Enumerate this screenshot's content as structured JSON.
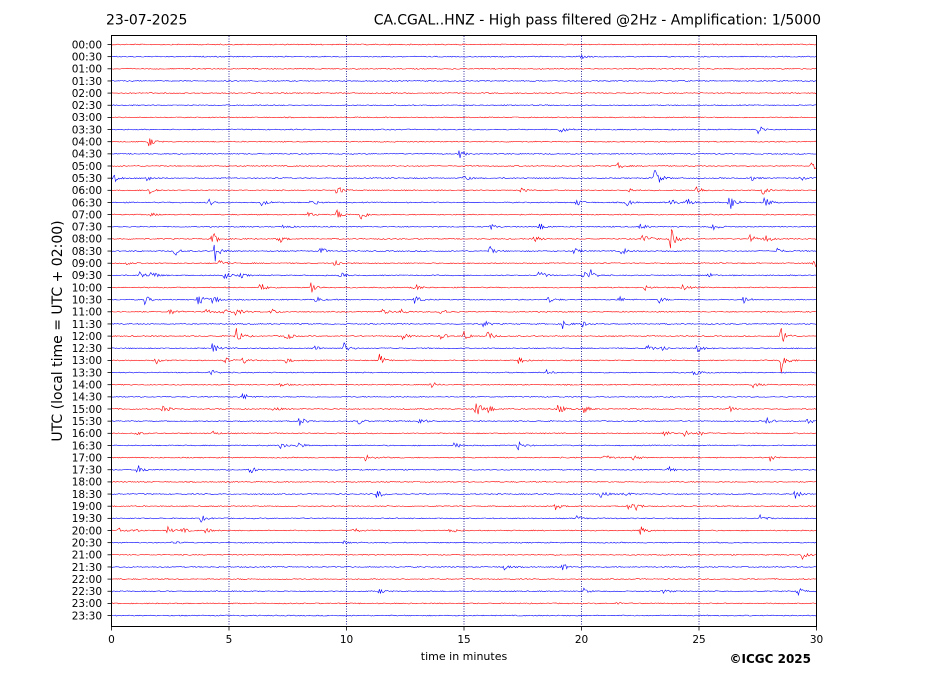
{
  "header": {
    "date": "23-07-2025",
    "station_title": "CA.CGAL..HNZ - High pass filtered @2Hz - Amplification: 1/5000"
  },
  "footer": {
    "copyright": "©ICGC 2025"
  },
  "colors": {
    "odd_trace": "#ff0000",
    "even_trace": "#0000ff",
    "grid": "#00008b",
    "frame": "#000000"
  },
  "chart_data": {
    "type": "line",
    "title": "CA.CGAL..HNZ - High pass filtered @2Hz - Amplification: 1/5000",
    "xlabel": "time in minutes",
    "ylabel": "UTC (local time = UTC + 02:00)",
    "xlim": [
      0,
      30
    ],
    "x_ticks": [
      "0",
      "5",
      "10",
      "15",
      "20",
      "25",
      "30"
    ],
    "grid": "vertical dotted lines every 5 minutes",
    "trace_colors": [
      "#ff0000",
      "#0000ff"
    ],
    "row_labels": [
      "00:00",
      "00:30",
      "01:00",
      "01:30",
      "02:00",
      "02:30",
      "03:00",
      "03:30",
      "04:00",
      "04:30",
      "05:00",
      "05:30",
      "06:00",
      "06:30",
      "07:00",
      "07:30",
      "08:00",
      "08:30",
      "09:00",
      "09:30",
      "10:00",
      "10:30",
      "11:00",
      "11:30",
      "12:00",
      "12:30",
      "13:00",
      "13:30",
      "14:00",
      "14:30",
      "15:00",
      "15:30",
      "16:00",
      "16:30",
      "17:00",
      "17:30",
      "18:00",
      "18:30",
      "19:00",
      "19:30",
      "20:00",
      "20:30",
      "21:00",
      "21:30",
      "22:00",
      "22:30",
      "23:00",
      "23:30"
    ],
    "events": [
      {
        "row": 1,
        "t": 20.0,
        "amp": 0.2
      },
      {
        "row": 7,
        "t": 19.1,
        "amp": 0.5
      },
      {
        "row": 7,
        "t": 27.5,
        "amp": 0.6
      },
      {
        "row": 8,
        "t": 1.6,
        "amp": 0.6
      },
      {
        "row": 9,
        "t": 14.8,
        "amp": 0.5
      },
      {
        "row": 10,
        "t": 21.5,
        "amp": 0.5
      },
      {
        "row": 10,
        "t": 29.8,
        "amp": 0.5
      },
      {
        "row": 11,
        "t": 0.1,
        "amp": 0.6
      },
      {
        "row": 11,
        "t": 1.5,
        "amp": 0.5
      },
      {
        "row": 11,
        "t": 15.0,
        "amp": 0.4
      },
      {
        "row": 11,
        "t": 23.1,
        "amp": 1.5
      },
      {
        "row": 11,
        "t": 27.1,
        "amp": 0.6
      },
      {
        "row": 11,
        "t": 29.3,
        "amp": 0.3
      },
      {
        "row": 12,
        "t": 1.6,
        "amp": 0.6
      },
      {
        "row": 12,
        "t": 9.6,
        "amp": 0.6
      },
      {
        "row": 12,
        "t": 17.4,
        "amp": 0.3
      },
      {
        "row": 12,
        "t": 22.0,
        "amp": 0.3
      },
      {
        "row": 12,
        "t": 24.9,
        "amp": 0.6
      },
      {
        "row": 12,
        "t": 27.7,
        "amp": 0.5
      },
      {
        "row": 13,
        "t": 4.1,
        "amp": 0.5
      },
      {
        "row": 13,
        "t": 6.4,
        "amp": 0.4
      },
      {
        "row": 13,
        "t": 8.5,
        "amp": 0.5
      },
      {
        "row": 13,
        "t": 19.8,
        "amp": 0.5
      },
      {
        "row": 13,
        "t": 21.9,
        "amp": 0.5
      },
      {
        "row": 13,
        "t": 23.8,
        "amp": 0.5
      },
      {
        "row": 13,
        "t": 24.5,
        "amp": 0.5
      },
      {
        "row": 13,
        "t": 26.3,
        "amp": 1.2
      },
      {
        "row": 13,
        "t": 27.8,
        "amp": 0.7
      },
      {
        "row": 14,
        "t": 1.7,
        "amp": 0.2
      },
      {
        "row": 14,
        "t": 8.4,
        "amp": 0.4
      },
      {
        "row": 14,
        "t": 9.6,
        "amp": 0.6
      },
      {
        "row": 14,
        "t": 10.6,
        "amp": 0.7
      },
      {
        "row": 15,
        "t": 7.3,
        "amp": 0.3
      },
      {
        "row": 15,
        "t": 16.1,
        "amp": 0.4
      },
      {
        "row": 15,
        "t": 18.2,
        "amp": 0.5
      },
      {
        "row": 15,
        "t": 22.5,
        "amp": 0.4
      },
      {
        "row": 15,
        "t": 25.6,
        "amp": 0.5
      },
      {
        "row": 16,
        "t": 4.3,
        "amp": 0.8
      },
      {
        "row": 16,
        "t": 7.1,
        "amp": 0.6
      },
      {
        "row": 16,
        "t": 18.0,
        "amp": 0.4
      },
      {
        "row": 16,
        "t": 22.6,
        "amp": 0.9
      },
      {
        "row": 16,
        "t": 23.8,
        "amp": 1.3
      },
      {
        "row": 16,
        "t": 27.1,
        "amp": 0.7
      },
      {
        "row": 16,
        "t": 27.8,
        "amp": 0.6
      },
      {
        "row": 17,
        "t": 2.7,
        "amp": 0.5
      },
      {
        "row": 17,
        "t": 4.4,
        "amp": 1.2
      },
      {
        "row": 17,
        "t": 8.9,
        "amp": 0.5
      },
      {
        "row": 17,
        "t": 16.1,
        "amp": 0.5
      },
      {
        "row": 17,
        "t": 19.7,
        "amp": 0.4
      },
      {
        "row": 17,
        "t": 21.7,
        "amp": 0.5
      },
      {
        "row": 17,
        "t": 28.3,
        "amp": 0.4
      },
      {
        "row": 18,
        "t": 0.6,
        "amp": 0.2
      },
      {
        "row": 18,
        "t": 4.6,
        "amp": 0.4
      },
      {
        "row": 18,
        "t": 9.5,
        "amp": 0.5
      },
      {
        "row": 18,
        "t": 29.9,
        "amp": 0.6
      },
      {
        "row": 19,
        "t": 1.2,
        "amp": 0.6
      },
      {
        "row": 19,
        "t": 1.7,
        "amp": 0.6
      },
      {
        "row": 19,
        "t": 4.8,
        "amp": 0.5
      },
      {
        "row": 19,
        "t": 5.5,
        "amp": 0.3
      },
      {
        "row": 19,
        "t": 9.7,
        "amp": 0.4
      },
      {
        "row": 19,
        "t": 18.2,
        "amp": 0.6
      },
      {
        "row": 19,
        "t": 20.1,
        "amp": 0.6
      },
      {
        "row": 19,
        "t": 20.4,
        "amp": 0.5
      },
      {
        "row": 19,
        "t": 25.4,
        "amp": 0.3
      },
      {
        "row": 20,
        "t": 6.3,
        "amp": 0.7
      },
      {
        "row": 20,
        "t": 8.5,
        "amp": 0.9
      },
      {
        "row": 20,
        "t": 12.9,
        "amp": 0.5
      },
      {
        "row": 20,
        "t": 22.7,
        "amp": 0.3
      },
      {
        "row": 20,
        "t": 24.3,
        "amp": 0.4
      },
      {
        "row": 21,
        "t": 1.4,
        "amp": 0.6
      },
      {
        "row": 21,
        "t": 3.7,
        "amp": 0.9
      },
      {
        "row": 21,
        "t": 4.2,
        "amp": 1.2
      },
      {
        "row": 21,
        "t": 8.7,
        "amp": 0.4
      },
      {
        "row": 21,
        "t": 12.9,
        "amp": 0.6
      },
      {
        "row": 21,
        "t": 18.6,
        "amp": 0.4
      },
      {
        "row": 21,
        "t": 21.6,
        "amp": 0.4
      },
      {
        "row": 21,
        "t": 23.3,
        "amp": 0.4
      },
      {
        "row": 21,
        "t": 26.9,
        "amp": 0.5
      },
      {
        "row": 22,
        "t": 2.5,
        "amp": 0.5
      },
      {
        "row": 22,
        "t": 4.0,
        "amp": 0.4
      },
      {
        "row": 22,
        "t": 4.7,
        "amp": 0.6
      },
      {
        "row": 22,
        "t": 5.3,
        "amp": 0.5
      },
      {
        "row": 22,
        "t": 6.8,
        "amp": 0.4
      },
      {
        "row": 22,
        "t": 11.5,
        "amp": 0.4
      },
      {
        "row": 22,
        "t": 12.3,
        "amp": 0.4
      },
      {
        "row": 22,
        "t": 14.0,
        "amp": 0.5
      },
      {
        "row": 23,
        "t": 15.8,
        "amp": 0.5
      },
      {
        "row": 23,
        "t": 19.2,
        "amp": 0.5
      },
      {
        "row": 23,
        "t": 20.0,
        "amp": 0.4
      },
      {
        "row": 24,
        "t": 5.3,
        "amp": 1.0
      },
      {
        "row": 24,
        "t": 7.4,
        "amp": 0.6
      },
      {
        "row": 24,
        "t": 12.4,
        "amp": 0.4
      },
      {
        "row": 24,
        "t": 14.0,
        "amp": 0.5
      },
      {
        "row": 24,
        "t": 15.0,
        "amp": 0.6
      },
      {
        "row": 24,
        "t": 16.0,
        "amp": 0.6
      },
      {
        "row": 24,
        "t": 28.5,
        "amp": 1.2
      },
      {
        "row": 25,
        "t": 4.3,
        "amp": 0.6
      },
      {
        "row": 25,
        "t": 8.6,
        "amp": 0.4
      },
      {
        "row": 25,
        "t": 9.9,
        "amp": 0.6
      },
      {
        "row": 25,
        "t": 22.8,
        "amp": 0.5
      },
      {
        "row": 25,
        "t": 23.4,
        "amp": 0.4
      },
      {
        "row": 25,
        "t": 24.9,
        "amp": 0.6
      },
      {
        "row": 26,
        "t": 1.9,
        "amp": 0.4
      },
      {
        "row": 26,
        "t": 4.8,
        "amp": 0.4
      },
      {
        "row": 26,
        "t": 5.6,
        "amp": 0.4
      },
      {
        "row": 26,
        "t": 7.4,
        "amp": 0.4
      },
      {
        "row": 26,
        "t": 11.4,
        "amp": 0.7
      },
      {
        "row": 26,
        "t": 17.3,
        "amp": 0.5
      },
      {
        "row": 26,
        "t": 28.5,
        "amp": 1.4
      },
      {
        "row": 27,
        "t": 4.2,
        "amp": 0.4
      },
      {
        "row": 27,
        "t": 18.5,
        "amp": 0.3
      },
      {
        "row": 27,
        "t": 24.8,
        "amp": 0.5
      },
      {
        "row": 28,
        "t": 7.2,
        "amp": 0.3
      },
      {
        "row": 28,
        "t": 13.6,
        "amp": 0.4
      },
      {
        "row": 28,
        "t": 27.3,
        "amp": 0.4
      },
      {
        "row": 29,
        "t": 5.6,
        "amp": 0.5
      },
      {
        "row": 30,
        "t": 2.2,
        "amp": 0.5
      },
      {
        "row": 30,
        "t": 6.9,
        "amp": 0.3
      },
      {
        "row": 30,
        "t": 15.5,
        "amp": 1.2
      },
      {
        "row": 30,
        "t": 16.0,
        "amp": 0.6
      },
      {
        "row": 30,
        "t": 19.0,
        "amp": 0.7
      },
      {
        "row": 30,
        "t": 20.1,
        "amp": 0.5
      },
      {
        "row": 30,
        "t": 26.3,
        "amp": 0.3
      },
      {
        "row": 31,
        "t": 8.0,
        "amp": 0.6
      },
      {
        "row": 31,
        "t": 10.5,
        "amp": 0.4
      },
      {
        "row": 31,
        "t": 13.1,
        "amp": 0.5
      },
      {
        "row": 31,
        "t": 27.9,
        "amp": 0.4
      },
      {
        "row": 31,
        "t": 29.6,
        "amp": 0.4
      },
      {
        "row": 32,
        "t": 1.0,
        "amp": 0.3
      },
      {
        "row": 32,
        "t": 4.3,
        "amp": 0.3
      },
      {
        "row": 32,
        "t": 23.5,
        "amp": 0.4
      },
      {
        "row": 32,
        "t": 24.4,
        "amp": 0.4
      },
      {
        "row": 32,
        "t": 25.0,
        "amp": 0.3
      },
      {
        "row": 33,
        "t": 7.2,
        "amp": 0.5
      },
      {
        "row": 33,
        "t": 7.9,
        "amp": 0.5
      },
      {
        "row": 33,
        "t": 14.6,
        "amp": 0.4
      },
      {
        "row": 33,
        "t": 17.3,
        "amp": 0.6
      },
      {
        "row": 34,
        "t": 10.8,
        "amp": 0.4
      },
      {
        "row": 34,
        "t": 21.0,
        "amp": 0.5
      },
      {
        "row": 34,
        "t": 22.2,
        "amp": 0.4
      },
      {
        "row": 34,
        "t": 28.0,
        "amp": 0.5
      },
      {
        "row": 35,
        "t": 1.1,
        "amp": 0.6
      },
      {
        "row": 35,
        "t": 5.9,
        "amp": 0.5
      },
      {
        "row": 35,
        "t": 23.7,
        "amp": 0.4
      },
      {
        "row": 37,
        "t": 11.3,
        "amp": 0.6
      },
      {
        "row": 37,
        "t": 20.8,
        "amp": 0.6
      },
      {
        "row": 37,
        "t": 21.8,
        "amp": 0.4
      },
      {
        "row": 37,
        "t": 29.1,
        "amp": 0.5
      },
      {
        "row": 38,
        "t": 18.9,
        "amp": 0.4
      },
      {
        "row": 38,
        "t": 22.0,
        "amp": 0.4
      },
      {
        "row": 38,
        "t": 22.3,
        "amp": 0.4
      },
      {
        "row": 39,
        "t": 3.8,
        "amp": 0.4
      },
      {
        "row": 39,
        "t": 19.8,
        "amp": 0.3
      },
      {
        "row": 39,
        "t": 27.6,
        "amp": 0.5
      },
      {
        "row": 40,
        "t": 0.3,
        "amp": 0.3
      },
      {
        "row": 40,
        "t": 0.9,
        "amp": 0.3
      },
      {
        "row": 40,
        "t": 2.4,
        "amp": 0.4
      },
      {
        "row": 40,
        "t": 3.0,
        "amp": 0.3
      },
      {
        "row": 40,
        "t": 4.0,
        "amp": 0.3
      },
      {
        "row": 40,
        "t": 10.3,
        "amp": 0.3
      },
      {
        "row": 40,
        "t": 14.4,
        "amp": 0.4
      },
      {
        "row": 40,
        "t": 22.5,
        "amp": 0.6
      },
      {
        "row": 41,
        "t": 2.6,
        "amp": 0.2
      },
      {
        "row": 41,
        "t": 9.9,
        "amp": 0.2
      },
      {
        "row": 42,
        "t": 29.4,
        "amp": 0.5
      },
      {
        "row": 43,
        "t": 16.7,
        "amp": 0.4
      },
      {
        "row": 43,
        "t": 19.2,
        "amp": 0.4
      },
      {
        "row": 45,
        "t": 11.4,
        "amp": 0.3
      },
      {
        "row": 45,
        "t": 20.1,
        "amp": 0.3
      },
      {
        "row": 45,
        "t": 23.5,
        "amp": 0.3
      },
      {
        "row": 45,
        "t": 29.2,
        "amp": 0.5
      },
      {
        "row": 46,
        "t": 21.5,
        "amp": 0.2
      }
    ]
  }
}
